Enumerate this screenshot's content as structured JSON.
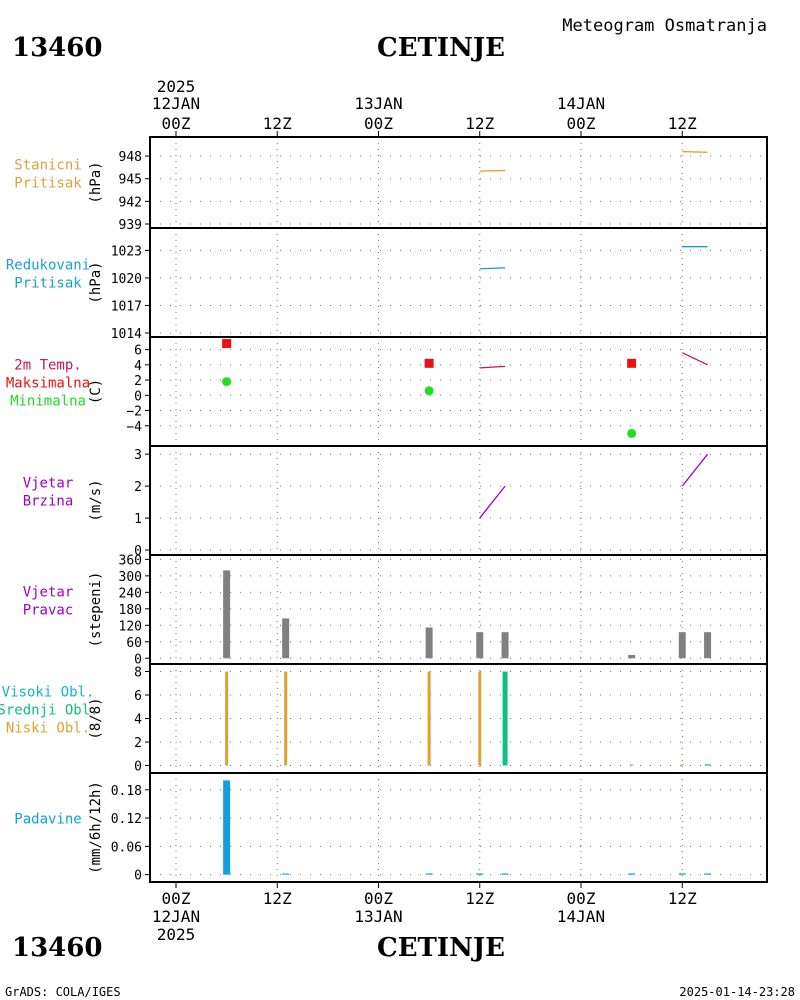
{
  "header": {
    "station_id": "13460",
    "station_name": "CETINJE",
    "product_title": "Meteogram Osmatranja"
  },
  "footer": {
    "credit": "GrADS: COLA/IGES",
    "timestamp": "2025-01-14-23:28"
  },
  "time_axis": {
    "start": "2025-01-12T00:00Z",
    "end": "2025-01-14T23:00Z",
    "top_year": "2025",
    "ticks": [
      {
        "t": "2025-01-12T00:00Z",
        "label": "00Z",
        "date": "12JAN"
      },
      {
        "t": "2025-01-12T12:00Z",
        "label": "12Z",
        "date": ""
      },
      {
        "t": "2025-01-13T00:00Z",
        "label": "00Z",
        "date": "13JAN"
      },
      {
        "t": "2025-01-13T12:00Z",
        "label": "12Z",
        "date": ""
      },
      {
        "t": "2025-01-14T00:00Z",
        "label": "00Z",
        "date": "14JAN"
      },
      {
        "t": "2025-01-14T12:00Z",
        "label": "12Z",
        "date": ""
      }
    ]
  },
  "colors": {
    "station_pressure": "#e0a040",
    "reduced_pressure": "#1aa0d0",
    "temp_2m": "#c8145a",
    "temp_max": "#ee1111",
    "temp_min": "#22dd22",
    "wind_speed": "#a000c8",
    "wind_dir": "#808080",
    "cloud_high": "#10b8c0",
    "cloud_mid": "#10c080",
    "cloud_low": "#e0a030",
    "precip": "#10a0e0"
  },
  "chart_data": [
    {
      "id": "station_pressure",
      "type": "line",
      "label_lines": [
        {
          "text": "Stanicni",
          "color": "#e0a040"
        },
        {
          "text": "Pritisak",
          "color": "#e0a040"
        }
      ],
      "ylabel": "(hPa)",
      "ylim": [
        939,
        950
      ],
      "yticks": [
        939,
        942,
        945,
        948
      ],
      "series": [
        {
          "name": "Stanicni Pritisak",
          "points": [
            {
              "t": "2025-01-13T12:00Z",
              "y": 946.0
            },
            {
              "t": "2025-01-13T15:00Z",
              "y": 946.1
            }
          ]
        },
        {
          "points": [
            {
              "t": "2025-01-14T12:00Z",
              "y": 948.6
            },
            {
              "t": "2025-01-14T15:00Z",
              "y": 948.5
            }
          ]
        }
      ]
    },
    {
      "id": "reduced_pressure",
      "type": "line",
      "label_lines": [
        {
          "text": "Redukovani",
          "color": "#1aa0d0"
        },
        {
          "text": "Pritisak",
          "color": "#1aa0d0"
        }
      ],
      "ylabel": "(hPa)",
      "ylim": [
        1014,
        1025
      ],
      "yticks": [
        1014,
        1017,
        1020,
        1023
      ],
      "series": [
        {
          "name": "Redukovani Pritisak",
          "points": [
            {
              "t": "2025-01-13T12:00Z",
              "y": 1021.0
            },
            {
              "t": "2025-01-13T15:00Z",
              "y": 1021.1
            }
          ]
        },
        {
          "points": [
            {
              "t": "2025-01-14T12:00Z",
              "y": 1023.4
            },
            {
              "t": "2025-01-14T15:00Z",
              "y": 1023.4
            }
          ]
        }
      ]
    },
    {
      "id": "temperature",
      "type": "line",
      "label_lines": [
        {
          "text": "2m Temp.",
          "color": "#c8145a"
        },
        {
          "text": "Maksimalna",
          "color": "#ee1111"
        },
        {
          "text": "Minimalna",
          "color": "#22dd22"
        }
      ],
      "ylabel": "(C)",
      "ylim": [
        -6,
        7
      ],
      "yticks": [
        -4,
        -2,
        0,
        2,
        4,
        6
      ],
      "series": [
        {
          "name": "2m Temp.",
          "points": [
            {
              "t": "2025-01-13T12:00Z",
              "y": 3.6
            },
            {
              "t": "2025-01-13T15:00Z",
              "y": 3.8
            }
          ]
        },
        {
          "points": [
            {
              "t": "2025-01-14T12:00Z",
              "y": 5.6
            },
            {
              "t": "2025-01-14T15:00Z",
              "y": 4.0
            }
          ]
        }
      ],
      "max_markers": [
        {
          "t": "2025-01-12T06:00Z",
          "y": 6.8
        },
        {
          "t": "2025-01-13T06:00Z",
          "y": 4.2
        },
        {
          "t": "2025-01-14T06:00Z",
          "y": 4.2
        }
      ],
      "min_markers": [
        {
          "t": "2025-01-12T06:00Z",
          "y": 1.8
        },
        {
          "t": "2025-01-13T06:00Z",
          "y": 0.6
        },
        {
          "t": "2025-01-14T06:00Z",
          "y": -5.0
        }
      ]
    },
    {
      "id": "wind_speed",
      "type": "line",
      "label_lines": [
        {
          "text": "Vjetar",
          "color": "#a000c8"
        },
        {
          "text": "Brzina",
          "color": "#a000c8"
        }
      ],
      "ylabel": "(m/s)",
      "ylim": [
        0,
        3.1
      ],
      "yticks": [
        0,
        1,
        2,
        3
      ],
      "series": [
        {
          "name": "Vjetar Brzina",
          "points": [
            {
              "t": "2025-01-13T12:00Z",
              "y": 1.0
            },
            {
              "t": "2025-01-13T15:00Z",
              "y": 2.0
            }
          ]
        },
        {
          "points": [
            {
              "t": "2025-01-14T12:00Z",
              "y": 2.0
            },
            {
              "t": "2025-01-14T15:00Z",
              "y": 3.0
            }
          ]
        }
      ]
    },
    {
      "id": "wind_direction",
      "type": "bar",
      "label_lines": [
        {
          "text": "Vjetar",
          "color": "#a000c8"
        },
        {
          "text": "Pravac",
          "color": "#a000c8"
        }
      ],
      "ylabel": "(stepeni)",
      "ylim": [
        -10,
        365
      ],
      "yticks": [
        0,
        60,
        120,
        180,
        240,
        300,
        360
      ],
      "ytick_labels": [
        "0",
        "60",
        "120",
        "180",
        "240",
        "300",
        "360"
      ],
      "bars": [
        {
          "t": "2025-01-12T06:00Z",
          "y": 320
        },
        {
          "t": "2025-01-12T13:00Z",
          "y": 145
        },
        {
          "t": "2025-01-13T06:00Z",
          "y": 112
        },
        {
          "t": "2025-01-13T12:00Z",
          "y": 95
        },
        {
          "t": "2025-01-13T15:00Z",
          "y": 95
        },
        {
          "t": "2025-01-14T06:00Z",
          "y": 12
        },
        {
          "t": "2025-01-14T12:00Z",
          "y": 95
        },
        {
          "t": "2025-01-14T15:00Z",
          "y": 95
        }
      ]
    },
    {
      "id": "clouds",
      "type": "bar",
      "label_lines": [
        {
          "text": "Visoki Obl.",
          "color": "#10b8c0"
        },
        {
          "text": "Srednji Obl.",
          "color": "#10c080"
        },
        {
          "text": "Niski Obl.",
          "color": "#e0a030"
        }
      ],
      "ylabel": "(8/8)",
      "ylim": [
        -0.3,
        8.3
      ],
      "yticks": [
        0,
        2,
        4,
        6,
        8
      ],
      "bars": [
        {
          "t": "2025-01-12T06:00Z",
          "y": 8,
          "layer": "low"
        },
        {
          "t": "2025-01-12T13:00Z",
          "y": 8,
          "layer": "low"
        },
        {
          "t": "2025-01-13T06:00Z",
          "y": 8,
          "layer": "low"
        },
        {
          "t": "2025-01-13T12:00Z",
          "y": 8,
          "layer": "low"
        },
        {
          "t": "2025-01-13T15:00Z",
          "y": 8,
          "layer": "mid"
        },
        {
          "t": "2025-01-14T06:00Z",
          "y": 0.1,
          "layer": "low"
        },
        {
          "t": "2025-01-14T12:00Z",
          "y": 0.1,
          "layer": "low"
        },
        {
          "t": "2025-01-14T15:00Z",
          "y": 0.1,
          "layer": "mid"
        }
      ]
    },
    {
      "id": "precipitation",
      "type": "bar",
      "label_lines": [
        {
          "text": "Padavine",
          "color": "#10a0e0"
        }
      ],
      "ylabel": "(mm/6h/12h)",
      "ylim": [
        -0.005,
        0.205
      ],
      "yticks": [
        0,
        0.06,
        0.12,
        0.18
      ],
      "ytick_labels": [
        "0",
        "0.06",
        "0.12",
        "0.18"
      ],
      "bars": [
        {
          "t": "2025-01-12T06:00Z",
          "y": 0.2
        },
        {
          "t": "2025-01-12T13:00Z",
          "y": 0.0
        },
        {
          "t": "2025-01-13T06:00Z",
          "y": 0.0
        },
        {
          "t": "2025-01-13T12:00Z",
          "y": 0.0
        },
        {
          "t": "2025-01-13T15:00Z",
          "y": 0.0
        },
        {
          "t": "2025-01-14T06:00Z",
          "y": 0.0
        },
        {
          "t": "2025-01-14T12:00Z",
          "y": 0.0
        },
        {
          "t": "2025-01-14T15:00Z",
          "y": 0.0
        }
      ]
    }
  ]
}
